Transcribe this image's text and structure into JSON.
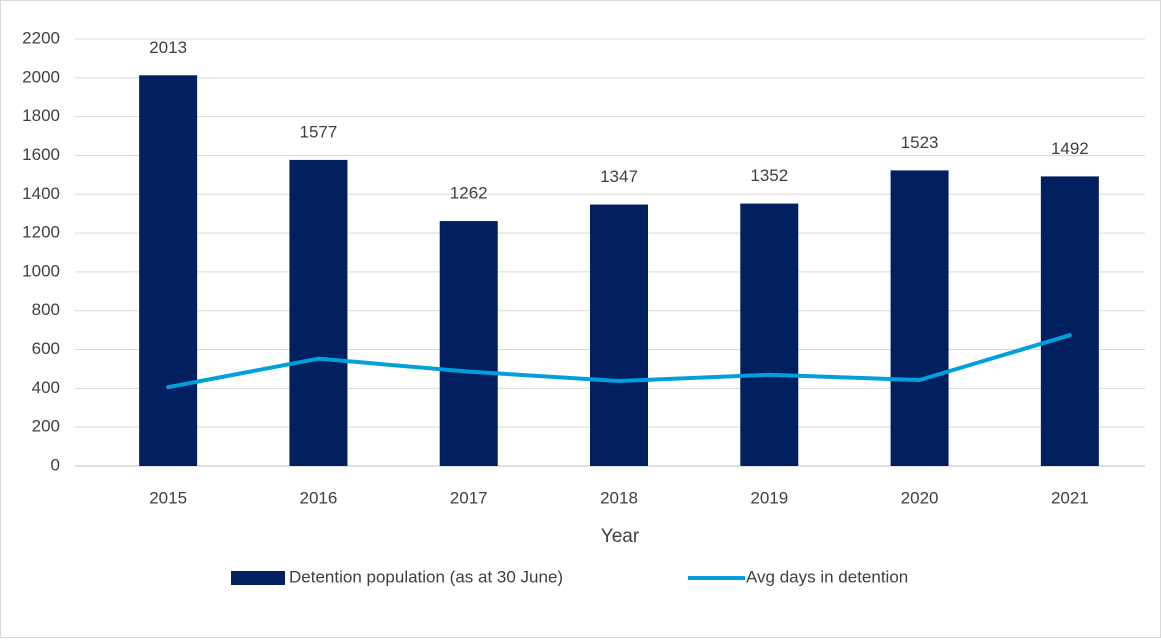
{
  "chart_data": {
    "type": "bar",
    "x_label": "Year",
    "categories": [
      "2015",
      "2016",
      "2017",
      "2018",
      "2019",
      "2020",
      "2021"
    ],
    "series": [
      {
        "name": "Detention population (as at 30 June)",
        "type": "bar",
        "color": "#002060",
        "values": [
          2013,
          1577,
          1262,
          1347,
          1352,
          1523,
          1492
        ]
      },
      {
        "name": "Avg days in detention",
        "type": "line",
        "color": "#00a0dc",
        "values": [
          406,
          553,
          486,
          438,
          470,
          443,
          674
        ]
      }
    ],
    "ylim": [
      0,
      2200
    ],
    "yticks": [
      0,
      200,
      400,
      600,
      800,
      1000,
      1200,
      1400,
      1600,
      1800,
      2000,
      2200
    ],
    "grid": true,
    "legend": "bottom"
  }
}
